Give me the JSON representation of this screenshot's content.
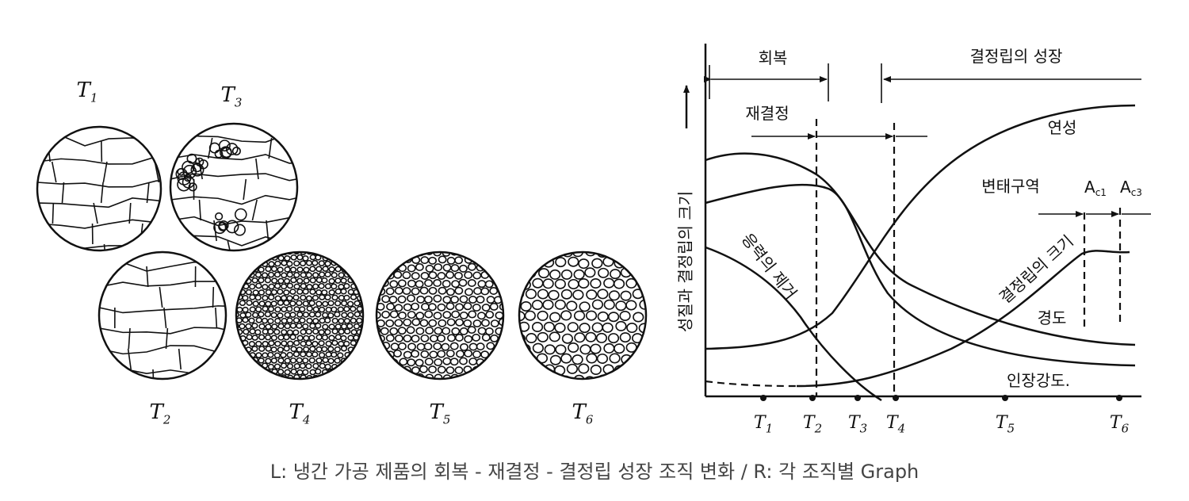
{
  "micrographs": [
    {
      "base": "T",
      "sub": "1"
    },
    {
      "base": "T",
      "sub": "3"
    },
    {
      "base": "T",
      "sub": "2"
    },
    {
      "base": "T",
      "sub": "4"
    },
    {
      "base": "T",
      "sub": "5"
    },
    {
      "base": "T",
      "sub": "6"
    }
  ],
  "graph": {
    "y_axis_label": "성질과 결정립의 크기",
    "stages": {
      "recovery": "회복",
      "grain_growth": "결정립의 성장",
      "recrystallization": "재결정"
    },
    "curves": {
      "ductility": "연성",
      "hardness": "경도",
      "tensile_strength": "인장강도.",
      "stress_relief": "응력의 제거",
      "grain_size": "결정립의 크기"
    },
    "transformation_zone": "변태구역",
    "ac1": {
      "base": "A",
      "sub": "c1"
    },
    "ac3": {
      "base": "A",
      "sub": "c3"
    },
    "x_ticks": [
      {
        "base": "T",
        "sub": "1"
      },
      {
        "base": "T",
        "sub": "2"
      },
      {
        "base": "T",
        "sub": "3"
      },
      {
        "base": "T",
        "sub": "4"
      },
      {
        "base": "T",
        "sub": "5"
      },
      {
        "base": "T",
        "sub": "6"
      }
    ]
  },
  "caption": "L: 냉간 가공 제품의 회복 - 재결정 - 결정립 성장 조직 변화  / R: 각 조직별 Graph"
}
